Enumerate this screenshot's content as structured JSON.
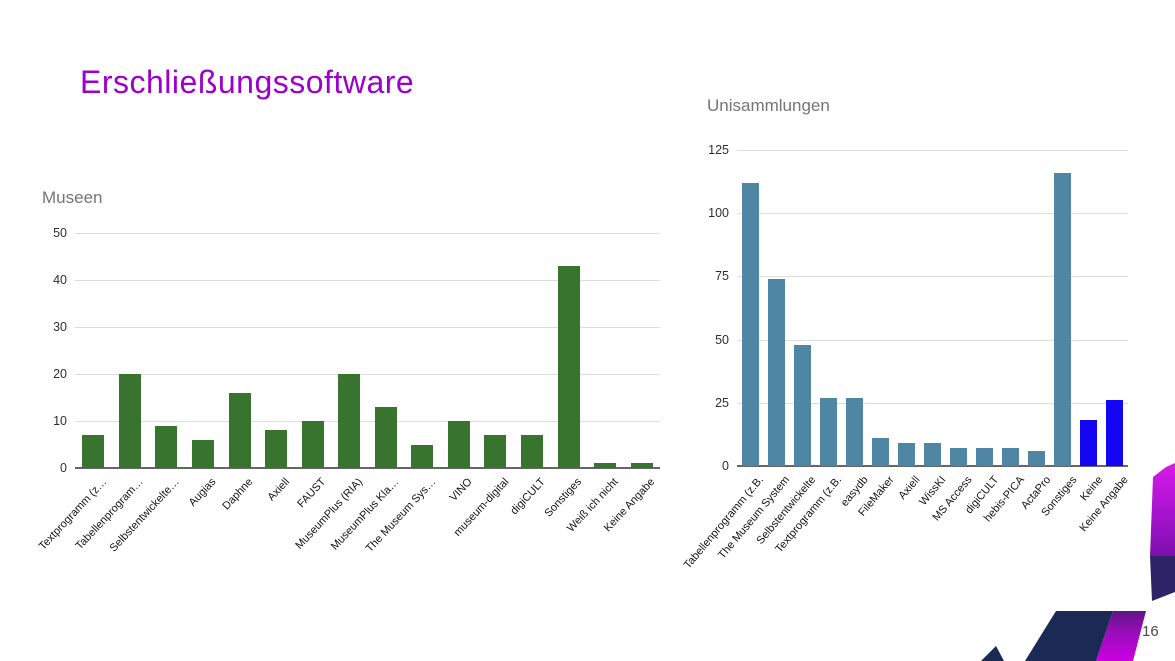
{
  "slide": {
    "title": "Erschließungssoftware",
    "title_color": "#9c00cc",
    "page_number": "16"
  },
  "chart_data": [
    {
      "type": "bar",
      "title": "Museen",
      "categories": [
        "Textprogramm (z…",
        "Tabellenprogram…",
        "Selbstentwickelte…",
        "Augias",
        "Daphne",
        "Axiell",
        "FAUST",
        "MuseumPlus (RIA)",
        "MuseumPlus Kla…",
        "The Museum Sys…",
        "VINO",
        "museum-digital",
        "digiCULT",
        "Sonstiges",
        "Weiß ich nicht",
        "Keine Angabe"
      ],
      "values": [
        7,
        20,
        9,
        6,
        16,
        8,
        10,
        20,
        13,
        5,
        10,
        7,
        7,
        43,
        1,
        1
      ],
      "ylim": [
        0,
        50
      ],
      "yticks": [
        0,
        10,
        20,
        30,
        40,
        50
      ],
      "bar_color": "#38742d",
      "grid": true,
      "legend": "none"
    },
    {
      "type": "bar",
      "title": "Unisammlungen",
      "categories": [
        "Tabellenprogramm (z.B.",
        "The Museum System",
        "Selbstentwickelte",
        "Textprogramm (z.B.",
        "easydb",
        "FileMaker",
        "Axiell",
        "WissKI",
        "MS Access",
        "digiCULT",
        "hebis-PICA",
        "ActaPro",
        "Sonstiges",
        "Keine",
        "Keine Angabe"
      ],
      "values": [
        112,
        74,
        48,
        27,
        27,
        11,
        9,
        9,
        7,
        7,
        7,
        6,
        116,
        18,
        26
      ],
      "ylim": [
        0,
        125
      ],
      "yticks": [
        0,
        25,
        50,
        75,
        100,
        125
      ],
      "bar_color": "#4f86a4",
      "accent_color": "#1406f2",
      "accent_start_index": 13,
      "grid": true,
      "legend": "none"
    }
  ],
  "decoration": {
    "navy": "#1a2a55",
    "indigo": "#2e2366",
    "magenta_bright": "#cb00e0",
    "magenta_top": "#d81ae8",
    "purple_deep": "#7d10ad",
    "purple_dark": "#5f1585"
  }
}
